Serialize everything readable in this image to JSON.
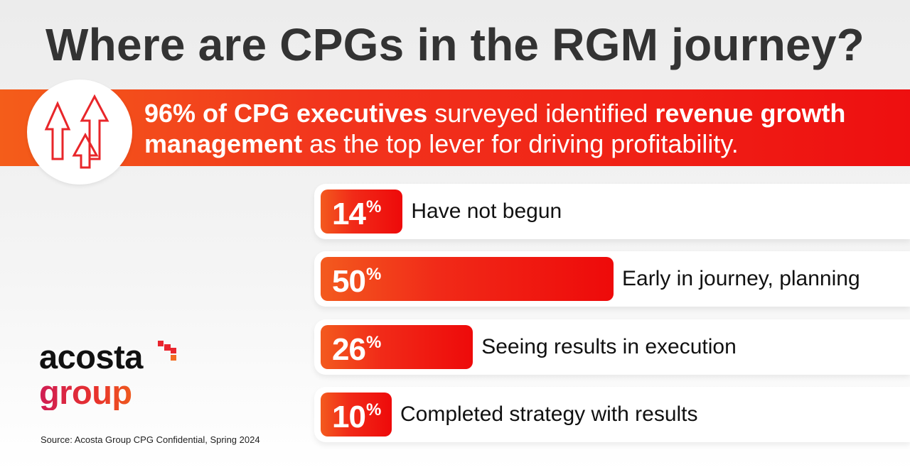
{
  "title": "Where are CPGs in the RGM journey?",
  "banner": {
    "part1_bold": "96% of CPG executives",
    "part2": " surveyed identified ",
    "part3_bold": "revenue growth management",
    "part4": " as the top lever for driving profitability."
  },
  "icon": "rising-arrows-icon",
  "chart_data": {
    "type": "bar",
    "orientation": "horizontal",
    "title": "Where are CPGs in the RGM journey?",
    "categories": [
      "Have not begun",
      "Early in journey, planning",
      "Seeing results in execution",
      "Completed strategy with results"
    ],
    "values": [
      14,
      50,
      26,
      10
    ],
    "value_labels": [
      "14",
      "50",
      "26",
      "10"
    ],
    "unit": "%",
    "xlim": [
      0,
      50
    ]
  },
  "logo": {
    "line1": "acosta",
    "line2": "group"
  },
  "source": "Source: Acosta Group CPG Confidential, Spring 2024",
  "colors": {
    "title": "#333333",
    "banner_start": "#f45d1a",
    "banner_end": "#ee0f10",
    "bar_start": "#f35a1e",
    "bar_end": "#ee0a0a",
    "logo_group_start": "#cf1d54",
    "logo_group_end": "#f0661a"
  }
}
